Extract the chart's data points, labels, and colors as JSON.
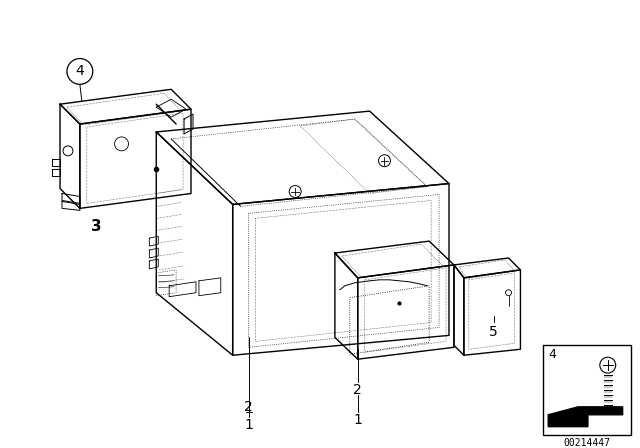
{
  "bg_color": "#ffffff",
  "line_color": "#000000",
  "part_number": "00214447",
  "figsize": [
    6.4,
    4.48
  ],
  "dpi": 100,
  "lw_main": 1.0,
  "lw_thin": 0.5,
  "lw_dot": 0.4
}
